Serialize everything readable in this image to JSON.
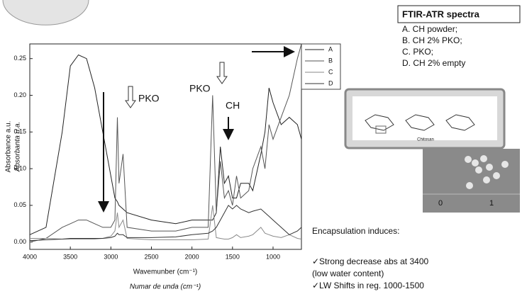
{
  "chart_data": {
    "type": "line",
    "x_label": "Wavemunber (cm⁻¹)",
    "x_label_2": "Numar de unda (cm⁻¹)",
    "y_label": "Absorbance a.u.",
    "y_label_2": "Absorbanta u.a.",
    "x": [
      4000,
      3800,
      3600,
      3500,
      3400,
      3300,
      3200,
      3100,
      3000,
      2950,
      2920,
      2900,
      2850,
      2800,
      2500,
      2200,
      2000,
      1800,
      1745,
      1700,
      1650,
      1600,
      1550,
      1500,
      1450,
      1400,
      1300,
      1250,
      1150,
      1100,
      1050,
      1000,
      900,
      800,
      700,
      650
    ],
    "series": [
      {
        "name": "A",
        "color": "#222222",
        "values": [
          0.01,
          0.02,
          0.15,
          0.24,
          0.255,
          0.25,
          0.21,
          0.15,
          0.09,
          0.06,
          0.055,
          0.05,
          0.045,
          0.04,
          0.03,
          0.025,
          0.03,
          0.03,
          0.03,
          0.04,
          0.13,
          0.08,
          0.09,
          0.06,
          0.06,
          0.08,
          0.08,
          0.07,
          0.12,
          0.15,
          0.21,
          0.19,
          0.16,
          0.17,
          0.16,
          0.14
        ]
      },
      {
        "name": "B",
        "color": "#555555",
        "values": [
          0.0,
          0.005,
          0.02,
          0.025,
          0.03,
          0.03,
          0.025,
          0.02,
          0.02,
          0.03,
          0.17,
          0.08,
          0.12,
          0.02,
          0.015,
          0.015,
          0.02,
          0.02,
          0.2,
          0.04,
          0.11,
          0.06,
          0.07,
          0.05,
          0.09,
          0.06,
          0.07,
          0.1,
          0.13,
          0.1,
          0.16,
          0.14,
          0.17,
          0.2,
          0.25,
          0.27
        ]
      },
      {
        "name": "C",
        "color": "#8a8a8a",
        "values": [
          0.005,
          0.005,
          0.004,
          0.004,
          0.004,
          0.004,
          0.004,
          0.005,
          0.008,
          0.015,
          0.04,
          0.02,
          0.03,
          0.005,
          0.003,
          0.003,
          0.003,
          0.004,
          0.05,
          0.006,
          0.005,
          0.004,
          0.004,
          0.006,
          0.01,
          0.006,
          0.008,
          0.01,
          0.02,
          0.012,
          0.01,
          0.008,
          0.006,
          0.01,
          0.005,
          0.004
        ]
      },
      {
        "name": "D",
        "color": "#333333",
        "values": [
          0.002,
          0.003,
          0.004,
          0.005,
          0.005,
          0.005,
          0.005,
          0.005,
          0.006,
          0.008,
          0.012,
          0.01,
          0.01,
          0.006,
          0.006,
          0.007,
          0.01,
          0.012,
          0.015,
          0.02,
          0.03,
          0.04,
          0.05,
          0.045,
          0.05,
          0.045,
          0.04,
          0.042,
          0.045,
          0.04,
          0.035,
          0.03,
          0.02,
          0.01,
          0.015,
          0.02
        ]
      }
    ],
    "xlim": [
      4000,
      650
    ],
    "ylim": [
      -0.01,
      0.27
    ],
    "xticks": [
      4000,
      3500,
      3000,
      2500,
      2000,
      1500,
      1000
    ],
    "yticks": [
      {
        "value": 0,
        "label": "0.00"
      },
      0.05,
      {
        "value": 0.1,
        "label": "0.10"
      },
      0.15,
      {
        "value": 0.2,
        "label": "0.20"
      },
      0.25
    ],
    "legend": "upper right",
    "annotations": [
      "PKO",
      "PKO",
      "CH"
    ]
  },
  "slide": {
    "box_title": "FTIR-ATR spectra",
    "items": [
      "A.  CH powder;",
      "B.  CH 2% PKO;",
      "C.  PKO;",
      "D.  CH 2% empty"
    ],
    "structure_caption": "Chitosan",
    "photo_labels": [
      "0",
      "1"
    ],
    "notes": [
      "Encapsulation induces:",
      "✓Strong decrease abs at 3400",
      "(low water content)",
      "✓LW Shifts in reg. 1000-1500"
    ]
  }
}
